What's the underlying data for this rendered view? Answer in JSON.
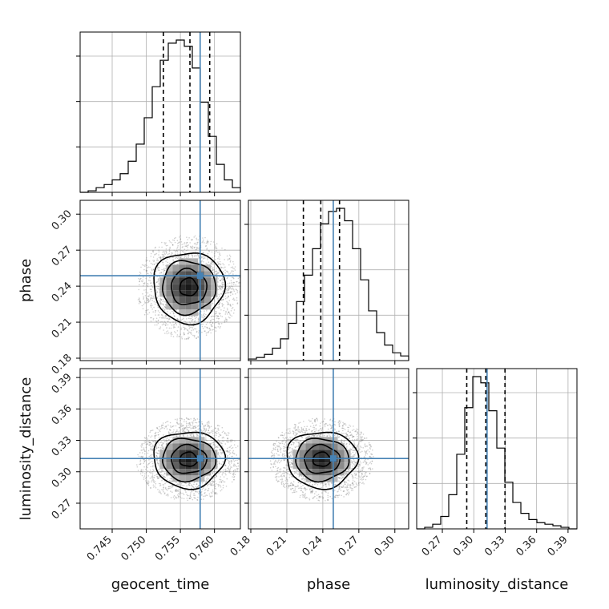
{
  "chart_data": {
    "type": "corner",
    "params": [
      "geocent_time",
      "phase",
      "luminosity_distance"
    ],
    "axis_labels": {
      "geocent_time": "geocent_time",
      "phase": "phase",
      "luminosity_distance": "luminosity_distance"
    },
    "ranges": {
      "geocent_time": [
        0.7403,
        0.7638
      ],
      "phase": [
        0.178,
        0.3115
      ],
      "luminosity_distance": [
        0.2455,
        0.3985
      ]
    },
    "ticks": {
      "geocent_time": [
        "0.745",
        "0.750",
        "0.755",
        "0.760"
      ],
      "phase": [
        "0.18",
        "0.21",
        "0.24",
        "0.27",
        "0.30"
      ],
      "luminosity_distance": [
        "0.27",
        "0.30",
        "0.33",
        "0.36",
        "0.39"
      ]
    },
    "truths": {
      "geocent_time": 0.7579,
      "phase": 0.2487,
      "luminosity_distance": 0.3127
    },
    "quantiles": {
      "geocent_time": [
        0.7525,
        0.7564,
        0.7593
      ],
      "phase": [
        0.2238,
        0.2383,
        0.2539
      ],
      "luminosity_distance": [
        0.2933,
        0.3115,
        0.3298
      ]
    },
    "histograms": {
      "geocent_time": {
        "range": [
          0.7403,
          0.7638
        ],
        "counts": [
          0,
          1,
          3,
          5,
          8,
          12,
          20,
          31,
          48,
          68,
          85,
          96,
          98,
          94,
          80,
          58,
          36,
          18,
          8,
          3
        ]
      },
      "phase": {
        "range": [
          0.178,
          0.3115
        ],
        "counts": [
          1,
          2,
          4,
          8,
          14,
          24,
          38,
          55,
          72,
          88,
          96,
          98,
          90,
          72,
          52,
          32,
          18,
          10,
          5,
          3
        ]
      },
      "luminosity_distance": {
        "range": [
          0.2455,
          0.3985
        ],
        "counts": [
          0,
          1,
          3,
          8,
          22,
          48,
          78,
          98,
          94,
          76,
          52,
          30,
          17,
          10,
          6,
          4,
          3,
          2,
          1,
          0
        ]
      }
    },
    "pairs": [
      {
        "x": "geocent_time",
        "y": "phase",
        "center": [
          0.7562,
          0.2392
        ],
        "sigma": [
          0.0026,
          0.0148
        ],
        "contour_levels": [
          0.5,
          1.0,
          1.5,
          2.0
        ]
      },
      {
        "x": "geocent_time",
        "y": "luminosity_distance",
        "center": [
          0.7562,
          0.3118
        ],
        "sigma": [
          0.0026,
          0.0135
        ],
        "contour_levels": [
          0.5,
          1.0,
          1.5,
          2.0
        ]
      },
      {
        "x": "phase",
        "y": "luminosity_distance",
        "center": [
          0.2391,
          0.3118
        ],
        "sigma": [
          0.0148,
          0.0135
        ],
        "contour_levels": [
          0.5,
          1.0,
          1.5,
          2.0
        ]
      }
    ],
    "truth_color": "#4682b4",
    "grid": true
  }
}
